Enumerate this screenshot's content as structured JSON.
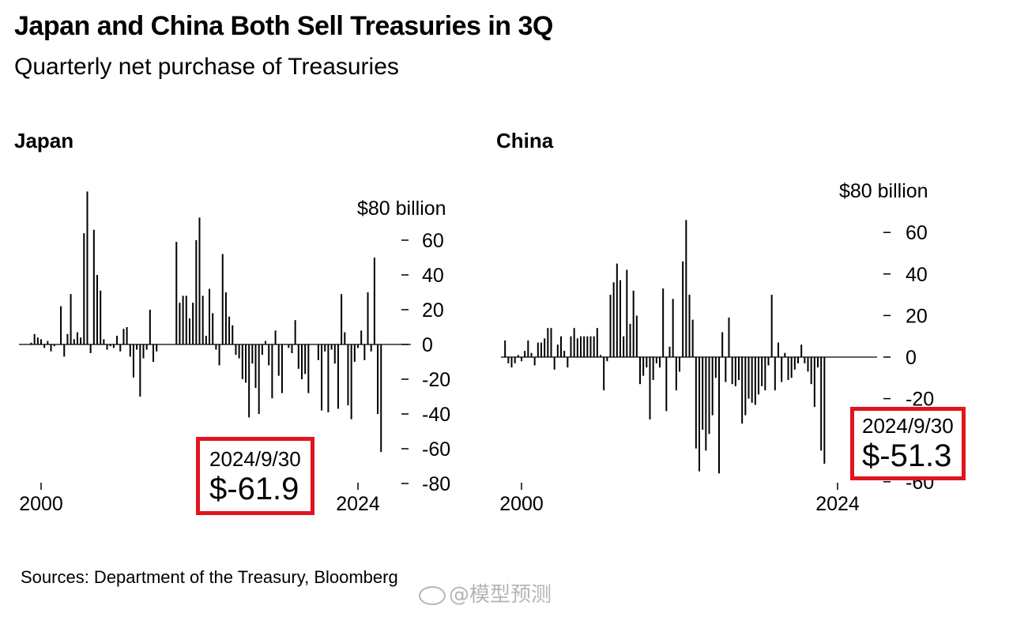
{
  "header": {
    "title": "Japan and China Both Sell Treasuries in 3Q",
    "subtitle": "Quarterly net purchase of Treasuries"
  },
  "colors": {
    "bars": "#000000",
    "callout_border": "#e0151d",
    "watermark": "#b5b5b5"
  },
  "chart_data": [
    {
      "type": "bar",
      "title": "Japan",
      "unit_label": "$80 billion",
      "ylim": [
        -80,
        80
      ],
      "yticks": [
        "60",
        "40",
        "20",
        "0",
        "-20",
        "-40",
        "-60",
        "-80"
      ],
      "x_tick_labels": [
        "2000",
        "2024"
      ],
      "x_start": 1999.0,
      "x_step": 0.25,
      "values": [
        0,
        1,
        6,
        4,
        3,
        -2,
        2,
        -4,
        -1,
        0,
        22,
        -7,
        6,
        29,
        3,
        7,
        4,
        64,
        88,
        -5,
        66,
        40,
        31,
        3,
        -3,
        -1,
        -2,
        5,
        -4,
        9,
        10,
        -7,
        -19,
        -3,
        -30,
        -8,
        -3,
        20,
        -10,
        -4,
        0,
        0,
        0,
        0,
        0,
        59,
        24,
        28,
        28,
        15,
        24,
        60,
        73,
        28,
        5,
        32,
        18,
        -3,
        -12,
        52,
        30,
        16,
        11,
        -6,
        -8,
        -20,
        -22,
        -42,
        -11,
        -25,
        -40,
        -6,
        2,
        -12,
        -31,
        8,
        -18,
        -28,
        0,
        -2,
        -5,
        14,
        -14,
        -20,
        -17,
        -28,
        0,
        0,
        -9,
        -38,
        -4,
        -39,
        -3,
        -11,
        -37,
        29,
        7,
        -35,
        -43,
        -10,
        -2,
        8,
        -9,
        30,
        -4,
        50,
        -40,
        -61.9
      ],
      "callout": {
        "date": "2024/9/30",
        "value": "$-61.9"
      }
    },
    {
      "type": "bar",
      "title": "China",
      "unit_label": "$80 billion",
      "ylim": [
        -60,
        80
      ],
      "yticks": [
        "60",
        "40",
        "20",
        "0",
        "-20",
        "-60"
      ],
      "x_tick_labels": [
        "2000",
        "2024"
      ],
      "x_start": 1998.75,
      "x_step": 0.25,
      "values": [
        8,
        -3,
        -5,
        -3,
        1,
        -2,
        3,
        8,
        2,
        -4,
        7,
        7,
        9,
        14,
        14,
        -6,
        6,
        10,
        3,
        -5,
        10,
        14,
        9,
        10,
        10,
        10,
        10,
        10,
        14,
        1,
        -16,
        -2,
        30,
        36,
        45,
        37,
        10,
        42,
        16,
        32,
        20,
        -13,
        -9,
        -5,
        -30,
        -11,
        -3,
        -5,
        33,
        -26,
        5,
        28,
        -16,
        -7,
        46,
        66,
        30,
        18,
        -44,
        -55,
        -35,
        -45,
        -37,
        -28,
        -10,
        -56,
        12,
        -12,
        19,
        -13,
        -14,
        -11,
        -32,
        -28,
        -20,
        -22,
        -23,
        -18,
        -14,
        -16,
        -4,
        30,
        -16,
        7,
        -12,
        2,
        -11,
        -10,
        -6,
        -3,
        6,
        -3,
        -7,
        -13,
        -24,
        -5,
        -45,
        -51.3
      ],
      "callout": {
        "date": "2024/9/30",
        "value": "$-51.3"
      }
    }
  ],
  "source": "Sources: Department of the Treasury, Bloomberg",
  "watermark": "@模型预测"
}
